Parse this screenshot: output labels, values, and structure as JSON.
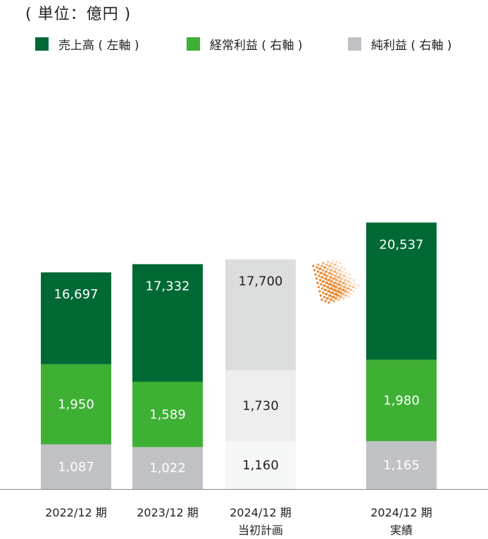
{
  "unit_label": "( 単位：億円 )",
  "legend": [
    {
      "label": "売上高 ( 左軸 )",
      "color": "#006934"
    },
    {
      "label": "経常利益 ( 右軸 )",
      "color": "#3eb034"
    },
    {
      "label": "純利益 ( 右軸 )",
      "color": "#bfc1c4"
    }
  ],
  "chart_data": {
    "type": "bar",
    "categories": [
      [
        "2022/12 期"
      ],
      [
        "2023/12 期"
      ],
      [
        "2024/12 期",
        "当初計画"
      ],
      [
        "2024/12 期",
        "実績"
      ]
    ],
    "series": [
      {
        "name": "売上高 ( 左軸 )",
        "axis": "left",
        "values": [
          16697,
          17332,
          17700,
          20537
        ],
        "labels": [
          "16,697",
          "17,332",
          "17,700",
          "20,537"
        ]
      },
      {
        "name": "経常利益 ( 右軸 )",
        "axis": "right",
        "values": [
          1950,
          1589,
          1730,
          1980
        ],
        "labels": [
          "1,950",
          "1,589",
          "1,730",
          "1,980"
        ]
      },
      {
        "name": "純利益 ( 右軸 )",
        "axis": "right",
        "values": [
          1087,
          1022,
          1160,
          1165
        ],
        "labels": [
          "1,087",
          "1,022",
          "1,160",
          "1,165"
        ]
      }
    ],
    "plan_bar_index": 2,
    "colors": {
      "sales": "#006934",
      "ordinary": "#3eb034",
      "net": "#bfc1c4",
      "plan_sales": "#dcdddd",
      "plan_ordinary": "#eeeeef",
      "plan_net": "#f6f7f7",
      "arrow": "#ee7e1f",
      "axis": "#888888"
    },
    "label_colors": {
      "on_dark": "#ffffff",
      "on_plan": "#222222"
    },
    "legend_position": "top"
  }
}
